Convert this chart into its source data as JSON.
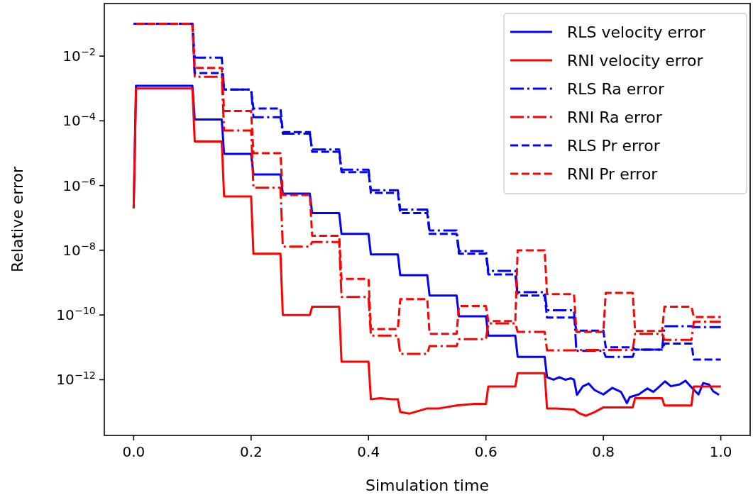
{
  "chart_data": {
    "type": "line",
    "xlabel": "Simulation time",
    "ylabel": "Relative error",
    "log": "y",
    "legend": "top right",
    "grid": false,
    "xlim": [
      -0.05,
      1.05
    ],
    "xticks": [
      {
        "value": 0,
        "label": "0.0"
      },
      0.2,
      0.4,
      0.6,
      0.8,
      {
        "value": 1,
        "label": "1.0"
      }
    ],
    "ylim": [
      1.9e-14,
      0.42
    ],
    "yticks": [
      {
        "value": 0.01,
        "label": "10$^{−2}$"
      },
      {
        "value": 0.0001,
        "label": "10$^{−4}$"
      },
      {
        "value": 1e-06,
        "label": "10$^{−6}$"
      },
      {
        "value": 1e-08,
        "label": "10$^{−8}$"
      },
      {
        "value": 1e-10,
        "label": "10$^{−10}$"
      },
      {
        "value": 1e-12,
        "label": "10$^{−12}$"
      }
    ],
    "x": [
      0,
      0.1,
      0.104,
      0.15,
      0.154,
      0.2,
      0.204,
      0.25,
      0.254,
      0.3,
      0.304,
      0.35,
      0.354,
      0.4,
      0.404,
      0.45,
      0.454,
      0.5,
      0.504,
      0.55,
      0.554,
      0.6,
      0.604,
      0.65,
      0.654,
      0.7,
      0.704,
      0.75,
      0.754,
      0.8,
      0.804,
      0.85,
      0.854,
      0.9,
      0.904,
      0.95,
      0.954,
      1.0
    ],
    "series": [
      {
        "name": "RLS velocity error",
        "color": "#0000ff",
        "line_style": "solid",
        "x": [
          0,
          0.004,
          0.1,
          0.104,
          0.15,
          0.154,
          0.2,
          0.204,
          0.25,
          0.254,
          0.3,
          0.304,
          0.35,
          0.354,
          0.4,
          0.404,
          0.45,
          0.454,
          0.5,
          0.504,
          0.55,
          0.554,
          0.6,
          0.604,
          0.65,
          0.654,
          0.7,
          0.704,
          0.715,
          0.725,
          0.735,
          0.745,
          0.75,
          0.755,
          0.765,
          0.775,
          0.785,
          0.8,
          0.815,
          0.83,
          0.84,
          0.845,
          0.86,
          0.875,
          0.885,
          0.892,
          0.905,
          0.915,
          0.93,
          0.94,
          0.951,
          0.962,
          0.97,
          0.98,
          0.987,
          0.997
        ],
        "values": [
          2e-07,
          0.0012,
          0.0012,
          0.00011,
          0.00011,
          9.5e-06,
          9.5e-06,
          2.2e-06,
          2.2e-06,
          5.6e-07,
          5.6e-07,
          1.4e-07,
          1.4e-07,
          3.2e-08,
          3.2e-08,
          7.4e-09,
          7.4e-09,
          1.7e-09,
          1.7e-09,
          4e-10,
          4e-10,
          9.1e-11,
          9.1e-11,
          2.3e-11,
          2.3e-11,
          5.1e-12,
          5.1e-12,
          1.2e-12,
          1e-12,
          1.2e-12,
          1e-12,
          1.1e-12,
          1e-12,
          3.4e-13,
          6.2e-13,
          7.6e-13,
          4.8e-13,
          3.5e-13,
          5.6e-13,
          4.2e-13,
          1.9e-13,
          2.9e-13,
          3.5e-13,
          5.4e-13,
          4.2e-13,
          5.4e-13,
          8.9e-13,
          6.3e-13,
          7.2e-13,
          9.3e-13,
          5.6e-13,
          3.5e-13,
          7.9e-13,
          7.1e-13,
          4.4e-13,
          3.4e-13
        ]
      },
      {
        "name": "RNI velocity error",
        "color": "#ff0000",
        "line_style": "solid",
        "x": [
          0,
          0.004,
          0.1,
          0.104,
          0.15,
          0.154,
          0.2,
          0.204,
          0.25,
          0.254,
          0.3,
          0.304,
          0.35,
          0.354,
          0.4,
          0.404,
          0.42,
          0.44,
          0.45,
          0.454,
          0.47,
          0.5,
          0.52,
          0.55,
          0.58,
          0.6,
          0.604,
          0.65,
          0.654,
          0.7,
          0.704,
          0.72,
          0.75,
          0.76,
          0.77,
          0.785,
          0.8,
          0.85,
          0.854,
          0.9,
          0.904,
          0.95,
          0.954,
          1.0
        ],
        "values": [
          2e-07,
          0.001,
          0.001,
          2.3e-05,
          2.3e-05,
          4.6e-07,
          4.6e-07,
          7.8e-09,
          7.8e-09,
          1e-10,
          1e-10,
          1.8e-10,
          1.8e-10,
          3.6e-12,
          3.6e-12,
          2.5e-13,
          2.7e-13,
          2.5e-13,
          2.5e-13,
          1e-13,
          9e-14,
          1.3e-13,
          1.3e-13,
          1.6e-13,
          1.8e-13,
          1.8e-13,
          6.2e-13,
          6.2e-13,
          1.6e-12,
          1.6e-12,
          1.3e-13,
          1.3e-13,
          1.2e-13,
          9e-14,
          7.7e-14,
          1e-13,
          1.4e-13,
          1.4e-13,
          2.7e-13,
          2.7e-13,
          1.6e-13,
          1.6e-13,
          6.2e-13,
          6.2e-13
        ]
      },
      {
        "name": "RLS Ra error",
        "color": "#0000ff",
        "line_style": "dashdot",
        "values": [
          0.1,
          0.1,
          0.009,
          0.009,
          0.00093,
          0.00093,
          0.00013,
          0.00013,
          4e-05,
          4e-05,
          1.3e-05,
          1.3e-05,
          3.1e-06,
          3.1e-06,
          7.2e-07,
          7.2e-07,
          1.8e-07,
          1.8e-07,
          4.1e-08,
          4.1e-08,
          9.5e-09,
          9.5e-09,
          2.3e-09,
          2.3e-09,
          5.1e-10,
          5.1e-10,
          1.4e-10,
          1.4e-10,
          7.8e-12,
          7.8e-12,
          5.1e-12,
          5.1e-12,
          8.5e-12,
          8.5e-12,
          4.5e-11,
          4.5e-11,
          4.2e-11,
          4.2e-11
        ]
      },
      {
        "name": "RNI Ra error",
        "color": "#ff0000",
        "line_style": "dashdot",
        "values": [
          0.1,
          0.1,
          0.0023,
          0.0023,
          5e-05,
          5e-05,
          8.5e-07,
          8.5e-07,
          1.3e-08,
          1.3e-08,
          1.8e-08,
          1.8e-08,
          3.6e-10,
          3.6e-10,
          2.3e-11,
          2.3e-11,
          6.3e-12,
          6.3e-12,
          1.1e-11,
          1.1e-11,
          1.8e-11,
          1.8e-11,
          5.5e-11,
          5.5e-11,
          3e-11,
          3e-11,
          8.1e-12,
          8.1e-12,
          8.3e-12,
          8.3e-12,
          8.3e-12,
          8.3e-12,
          2.6e-11,
          2.6e-11,
          1.7e-11,
          1.7e-11,
          6.2e-11,
          6.2e-11
        ]
      },
      {
        "name": "RLS Pr error",
        "color": "#0000ff",
        "line_style": "dashed",
        "values": [
          0.1,
          0.1,
          0.003,
          0.003,
          0.00093,
          0.00093,
          0.00024,
          0.00024,
          4.5e-05,
          4.5e-05,
          1.1e-05,
          1.1e-05,
          2.6e-06,
          2.6e-06,
          5.9e-07,
          5.9e-07,
          1.4e-07,
          1.4e-07,
          3.2e-08,
          3.2e-08,
          7.8e-09,
          7.8e-09,
          1.8e-09,
          1.8e-09,
          4e-10,
          4e-10,
          8.3e-11,
          8.3e-11,
          3.3e-11,
          3.3e-11,
          1e-11,
          1e-11,
          8.5e-12,
          8.5e-12,
          1.3e-11,
          1.3e-11,
          4.2e-12,
          4.2e-12
        ]
      },
      {
        "name": "RNI Pr error",
        "color": "#ff0000",
        "line_style": "dashed",
        "values": [
          0.1,
          0.1,
          0.0043,
          0.0043,
          0.0002,
          0.0002,
          1e-05,
          1e-05,
          5.1e-07,
          5.1e-07,
          2.8e-08,
          2.8e-08,
          1.3e-09,
          1.3e-09,
          3.7e-11,
          3.7e-11,
          3.1e-10,
          3.1e-10,
          2.6e-11,
          2.6e-11,
          1.9e-10,
          1.9e-10,
          6.5e-11,
          6.5e-11,
          1e-08,
          1e-08,
          4.4e-10,
          4.4e-10,
          3e-11,
          3e-11,
          4.8e-10,
          4.8e-10,
          3.2e-11,
          3.2e-11,
          1.8e-10,
          1.8e-10,
          8.7e-11,
          8.7e-11
        ]
      }
    ]
  }
}
